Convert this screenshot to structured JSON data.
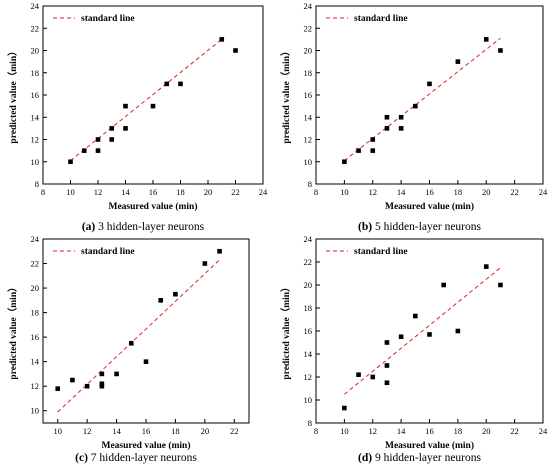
{
  "chart_data": [
    {
      "type": "scatter",
      "caption_letter": "(a)",
      "caption_text": " 3 hidden-layer neurons",
      "legend": "standard line",
      "xlabel": "Measured value (min)",
      "ylabel": "predicted value（min）",
      "xlim": [
        8,
        24
      ],
      "ylim": [
        8,
        24
      ],
      "xticks": [
        8,
        10,
        12,
        14,
        16,
        18,
        20,
        22,
        24
      ],
      "yticks": [
        8,
        10,
        12,
        14,
        16,
        18,
        20,
        22,
        24
      ],
      "points": [
        [
          10,
          10
        ],
        [
          11,
          11
        ],
        [
          12,
          11
        ],
        [
          12,
          12
        ],
        [
          13,
          12
        ],
        [
          13,
          13
        ],
        [
          14,
          13
        ],
        [
          14,
          15
        ],
        [
          16,
          15
        ],
        [
          17,
          17
        ],
        [
          18,
          17
        ],
        [
          21,
          21
        ],
        [
          22,
          20
        ]
      ],
      "line": [
        [
          10,
          10.1
        ],
        [
          21,
          21
        ]
      ]
    },
    {
      "type": "scatter",
      "caption_letter": "(b)",
      "caption_text": " 5 hidden-layer neurons",
      "legend": "standard line",
      "xlabel": "Measured value (min)",
      "ylabel": "predicted value（min）",
      "xlim": [
        8,
        24
      ],
      "ylim": [
        8,
        24
      ],
      "xticks": [
        8,
        10,
        12,
        14,
        16,
        18,
        20,
        22,
        24
      ],
      "yticks": [
        8,
        10,
        12,
        14,
        16,
        18,
        20,
        22,
        24
      ],
      "points": [
        [
          10,
          10
        ],
        [
          11,
          11
        ],
        [
          12,
          11
        ],
        [
          12,
          12
        ],
        [
          13,
          13
        ],
        [
          13,
          14
        ],
        [
          14,
          13
        ],
        [
          14,
          14
        ],
        [
          15,
          15
        ],
        [
          16,
          17
        ],
        [
          18,
          19
        ],
        [
          20,
          21
        ],
        [
          21,
          20
        ]
      ],
      "line": [
        [
          10,
          10.1
        ],
        [
          21,
          21.1
        ]
      ]
    },
    {
      "type": "scatter",
      "caption_letter": "(c)",
      "caption_text": " 7 hidden-layer neurons",
      "legend": "standard line",
      "xlabel": "Measured value (min)",
      "ylabel": "predicted value（min）",
      "xlim": [
        9,
        23
      ],
      "ylim": [
        9,
        24
      ],
      "xticks": [
        10,
        12,
        14,
        16,
        18,
        20,
        22
      ],
      "yticks": [
        10,
        12,
        14,
        16,
        18,
        20,
        22,
        24
      ],
      "points": [
        [
          10,
          11.8
        ],
        [
          11,
          12.5
        ],
        [
          12,
          12
        ],
        [
          13,
          12.2
        ],
        [
          13,
          12
        ],
        [
          13,
          13
        ],
        [
          14,
          13
        ],
        [
          15,
          15.5
        ],
        [
          16,
          14
        ],
        [
          17,
          19
        ],
        [
          18,
          19.5
        ],
        [
          20,
          22
        ],
        [
          21,
          23
        ]
      ],
      "line": [
        [
          10,
          9.9
        ],
        [
          21,
          22.3
        ]
      ]
    },
    {
      "type": "scatter",
      "caption_letter": "(d)",
      "caption_text": " 9 hidden-layer neurons",
      "legend": "standard line",
      "xlabel": "Measured value (min)",
      "ylabel": "predicted value（min）",
      "xlim": [
        8,
        24
      ],
      "ylim": [
        8,
        24
      ],
      "xticks": [
        8,
        10,
        12,
        14,
        16,
        18,
        20,
        22,
        24
      ],
      "yticks": [
        8,
        10,
        12,
        14,
        16,
        18,
        20,
        22,
        24
      ],
      "points": [
        [
          10,
          9.3
        ],
        [
          11,
          12.2
        ],
        [
          12,
          12
        ],
        [
          13,
          11.5
        ],
        [
          13,
          13
        ],
        [
          13,
          15
        ],
        [
          14,
          15.5
        ],
        [
          15,
          17.3
        ],
        [
          16,
          15.7
        ],
        [
          17,
          20
        ],
        [
          18,
          16
        ],
        [
          20,
          21.6
        ],
        [
          21,
          20
        ]
      ],
      "line": [
        [
          10,
          10.5
        ],
        [
          21,
          21.5
        ]
      ]
    }
  ]
}
